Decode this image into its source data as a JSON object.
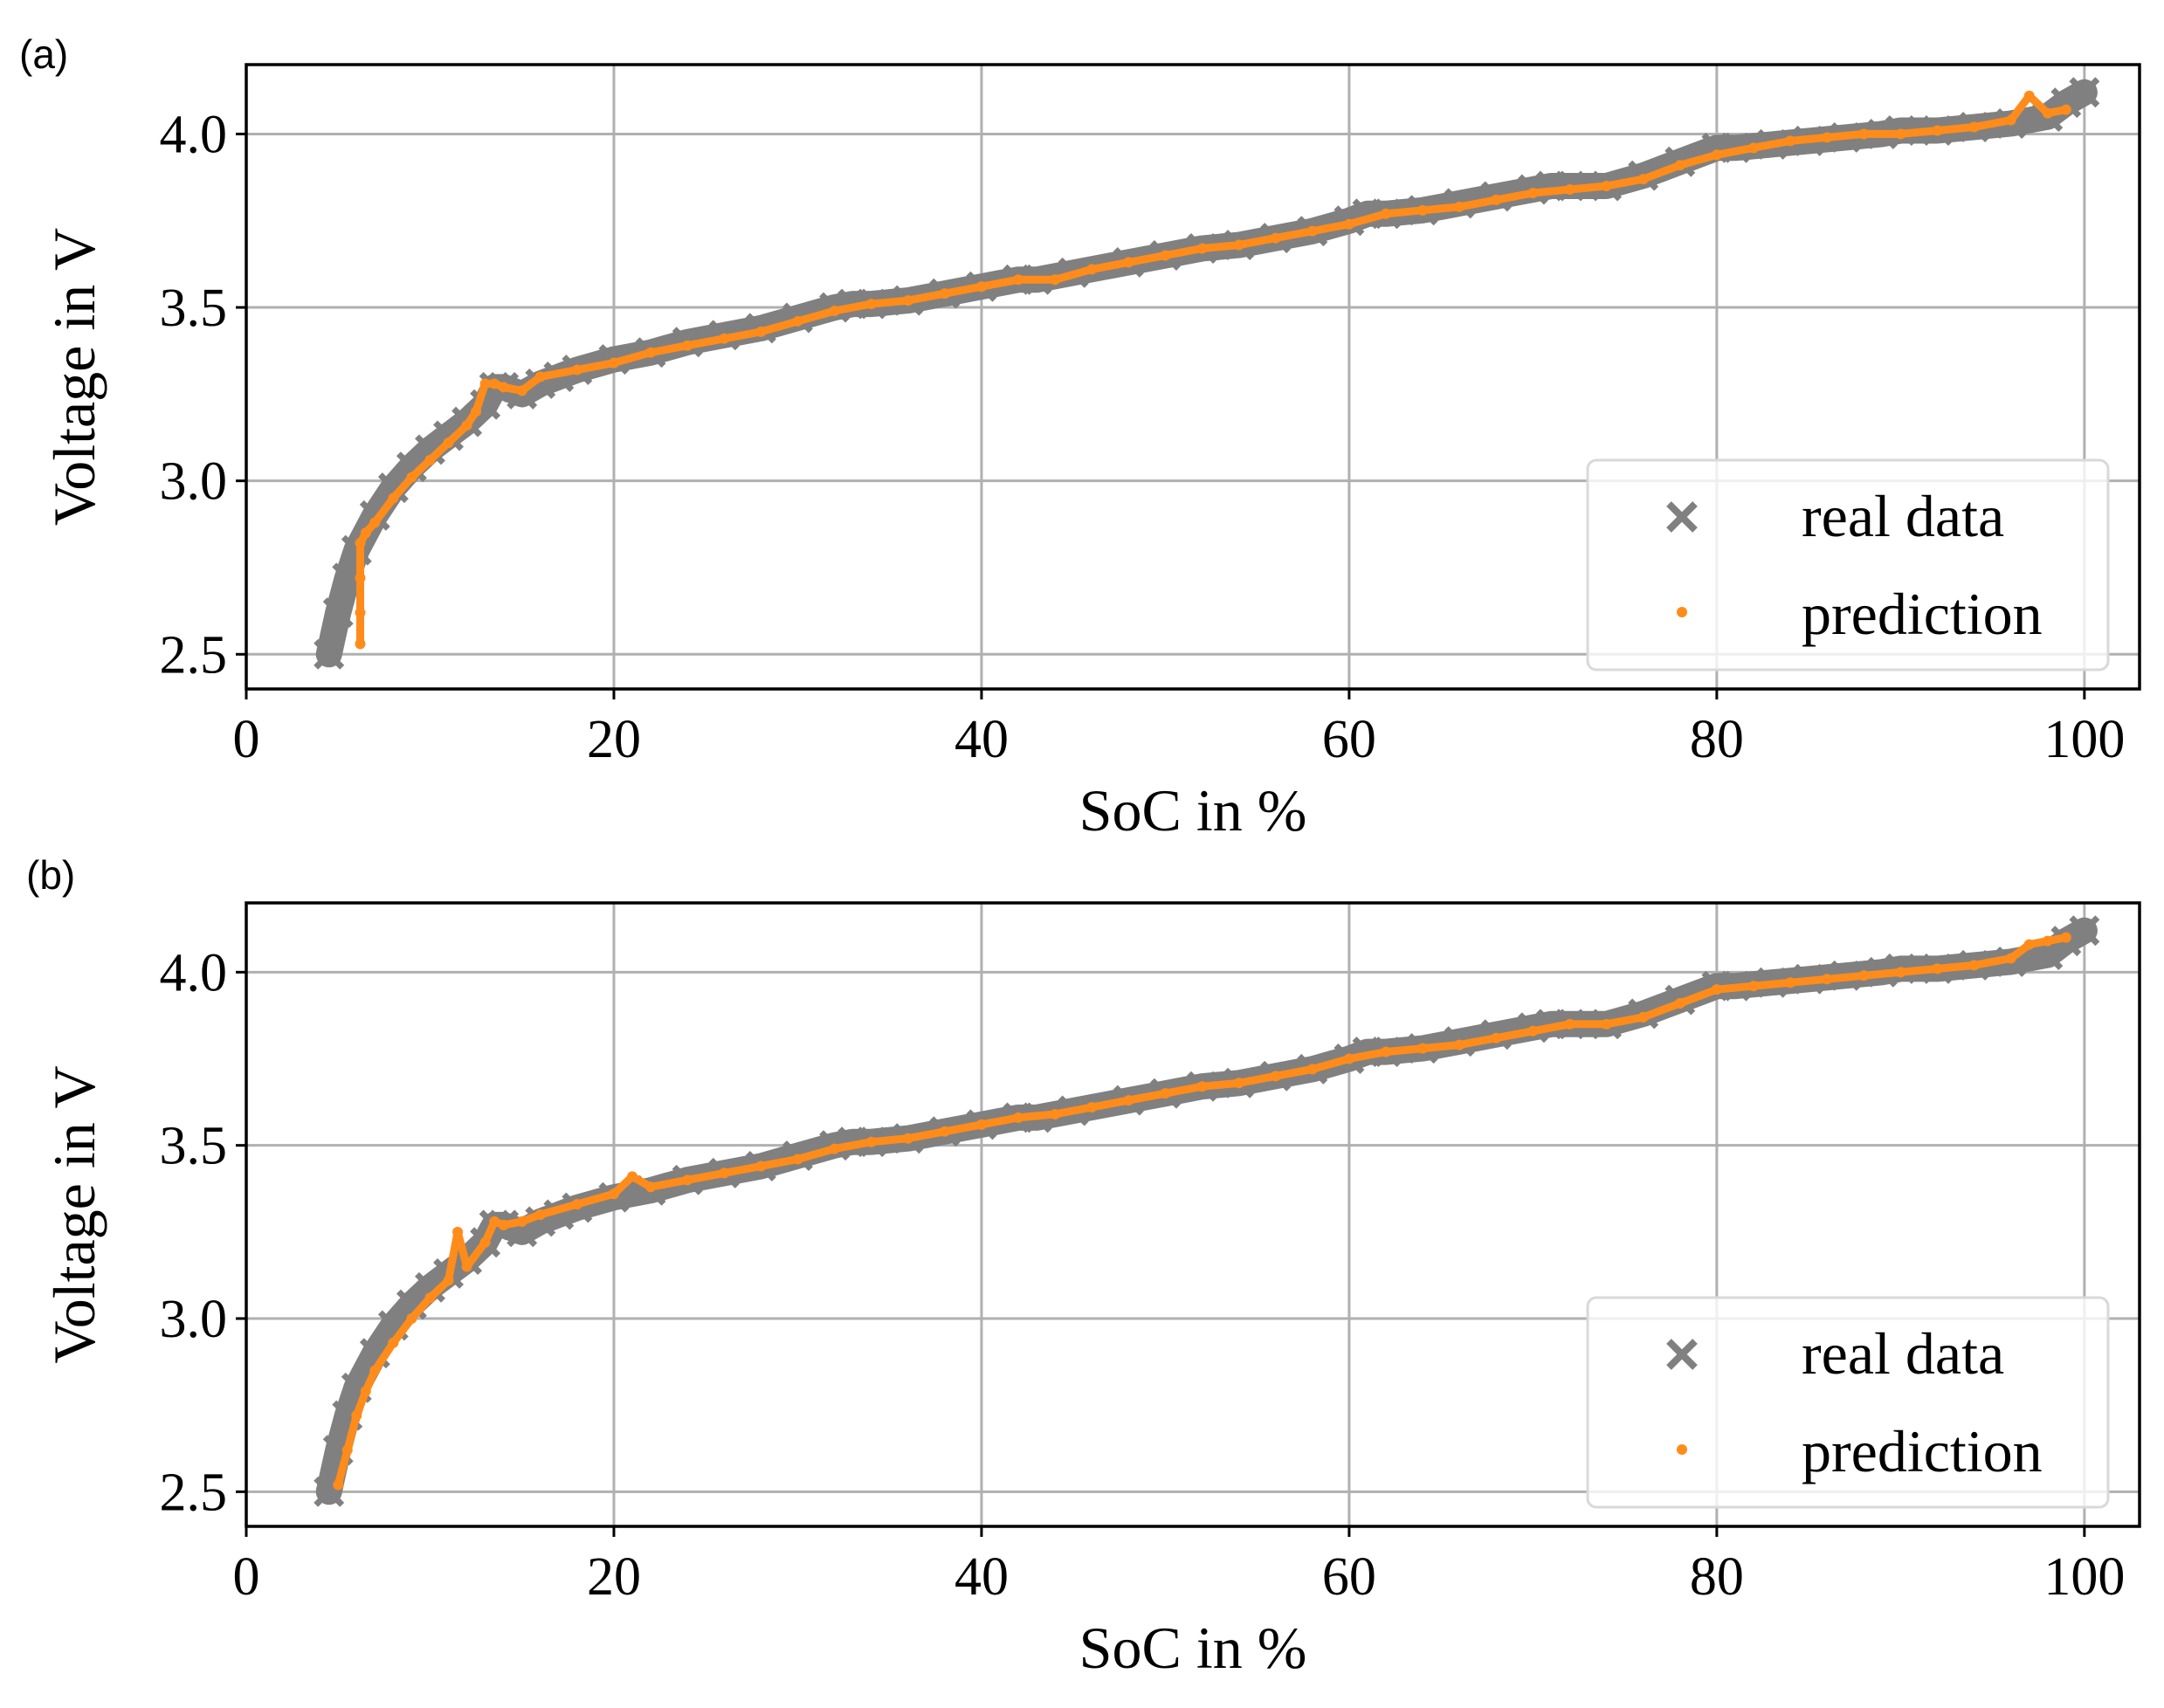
{
  "chart_data": [
    {
      "panel_label": "(a)",
      "type": "scatter",
      "xlabel": "SoC in %",
      "ylabel": "Voltage in V",
      "xlim": [
        0,
        103
      ],
      "ylim": [
        2.4,
        4.2
      ],
      "xticks": [
        0,
        20,
        40,
        60,
        80,
        100
      ],
      "xtick_labels": [
        "0",
        "20",
        "40",
        "60",
        "80",
        "100"
      ],
      "yticks": [
        2.5,
        3.0,
        3.5,
        4.0
      ],
      "ytick_labels": [
        "2.5",
        "3.0",
        "3.5",
        "4.0"
      ],
      "grid": true,
      "legend_position": "lower-right",
      "series": [
        {
          "name": "real data",
          "marker": "x",
          "color": "#808080",
          "x": [
            4.5,
            5.0,
            5.5,
            6,
            7,
            8,
            9,
            10,
            11,
            12,
            13,
            13.5,
            14,
            15,
            16,
            17,
            18,
            20,
            22,
            24,
            26,
            28,
            30,
            32,
            33,
            34,
            36,
            38,
            40,
            42,
            43,
            45,
            48,
            50,
            52,
            54,
            56,
            58,
            60,
            61,
            62,
            64,
            66,
            68,
            70,
            71,
            72,
            74,
            76,
            78,
            80,
            81,
            83,
            85,
            87,
            89,
            90,
            92,
            94,
            96,
            98,
            99,
            100
          ],
          "y": [
            2.5,
            2.62,
            2.72,
            2.8,
            2.9,
            2.98,
            3.04,
            3.09,
            3.13,
            3.17,
            3.22,
            3.27,
            3.27,
            3.25,
            3.28,
            3.3,
            3.32,
            3.35,
            3.37,
            3.4,
            3.42,
            3.44,
            3.47,
            3.5,
            3.51,
            3.51,
            3.52,
            3.54,
            3.56,
            3.58,
            3.58,
            3.6,
            3.63,
            3.65,
            3.67,
            3.68,
            3.7,
            3.72,
            3.75,
            3.77,
            3.77,
            3.78,
            3.8,
            3.82,
            3.84,
            3.85,
            3.85,
            3.85,
            3.88,
            3.92,
            3.96,
            3.96,
            3.97,
            3.98,
            3.99,
            4.0,
            4.01,
            4.01,
            4.02,
            4.03,
            4.05,
            4.09,
            4.12
          ]
        },
        {
          "name": "prediction",
          "marker": "dot",
          "color": "#ff8c1a",
          "x": [
            6.2,
            6.2,
            6.2,
            6.2,
            6.5,
            7,
            8,
            9,
            10,
            11,
            12,
            12.5,
            13,
            13.5,
            14,
            15,
            16,
            18,
            20,
            22,
            24,
            26,
            28,
            30,
            32,
            34,
            36,
            38,
            40,
            42,
            44,
            46,
            48,
            50,
            52,
            54,
            56,
            58,
            60,
            62,
            64,
            66,
            68,
            70,
            72,
            74,
            76,
            78,
            80,
            82,
            84,
            86,
            88,
            90,
            92,
            94,
            96,
            97,
            98,
            99
          ],
          "y": [
            2.53,
            2.62,
            2.72,
            2.82,
            2.85,
            2.88,
            2.95,
            3.01,
            3.06,
            3.11,
            3.16,
            3.2,
            3.28,
            3.28,
            3.27,
            3.26,
            3.3,
            3.32,
            3.34,
            3.37,
            3.39,
            3.41,
            3.43,
            3.46,
            3.49,
            3.51,
            3.52,
            3.54,
            3.56,
            3.58,
            3.58,
            3.61,
            3.63,
            3.65,
            3.67,
            3.68,
            3.7,
            3.72,
            3.74,
            3.77,
            3.78,
            3.79,
            3.81,
            3.83,
            3.84,
            3.85,
            3.87,
            3.91,
            3.94,
            3.96,
            3.98,
            3.99,
            4.0,
            4.0,
            4.01,
            4.02,
            4.04,
            4.11,
            4.06,
            4.07
          ]
        }
      ]
    },
    {
      "panel_label": "(b)",
      "type": "scatter",
      "xlabel": "SoC in %",
      "ylabel": "Voltage in V",
      "xlim": [
        0,
        103
      ],
      "ylim": [
        2.4,
        4.2
      ],
      "xticks": [
        0,
        20,
        40,
        60,
        80,
        100
      ],
      "xtick_labels": [
        "0",
        "20",
        "40",
        "60",
        "80",
        "100"
      ],
      "yticks": [
        2.5,
        3.0,
        3.5,
        4.0
      ],
      "ytick_labels": [
        "2.5",
        "3.0",
        "3.5",
        "4.0"
      ],
      "grid": true,
      "legend_position": "lower-right",
      "series": [
        {
          "name": "real data",
          "marker": "x",
          "color": "#808080",
          "x": [
            4.5,
            5.0,
            5.5,
            6,
            7,
            8,
            9,
            10,
            11,
            12,
            13,
            13.5,
            14,
            15,
            16,
            17,
            18,
            20,
            22,
            24,
            26,
            28,
            30,
            32,
            33,
            34,
            36,
            38,
            40,
            42,
            43,
            45,
            48,
            50,
            52,
            54,
            56,
            58,
            60,
            61,
            62,
            64,
            66,
            68,
            70,
            71,
            72,
            74,
            76,
            78,
            80,
            81,
            83,
            85,
            87,
            89,
            90,
            92,
            94,
            96,
            98,
            99,
            100
          ],
          "y": [
            2.5,
            2.62,
            2.72,
            2.8,
            2.9,
            2.98,
            3.04,
            3.09,
            3.13,
            3.17,
            3.22,
            3.27,
            3.27,
            3.25,
            3.28,
            3.3,
            3.32,
            3.35,
            3.37,
            3.4,
            3.42,
            3.44,
            3.47,
            3.5,
            3.51,
            3.51,
            3.52,
            3.54,
            3.56,
            3.58,
            3.58,
            3.6,
            3.63,
            3.65,
            3.67,
            3.68,
            3.7,
            3.72,
            3.75,
            3.77,
            3.77,
            3.78,
            3.8,
            3.82,
            3.84,
            3.85,
            3.85,
            3.85,
            3.88,
            3.92,
            3.96,
            3.96,
            3.97,
            3.98,
            3.99,
            4.0,
            4.01,
            4.01,
            4.02,
            4.03,
            4.05,
            4.09,
            4.12
          ]
        },
        {
          "name": "prediction",
          "marker": "dot",
          "color": "#ff8c1a",
          "x": [
            5.0,
            5.5,
            6,
            6.5,
            7,
            8,
            9,
            10,
            11,
            11.5,
            12,
            13,
            13.5,
            14,
            15,
            16,
            18,
            20,
            21,
            22,
            24,
            26,
            28,
            30,
            32,
            34,
            36,
            38,
            40,
            42,
            44,
            46,
            48,
            50,
            52,
            54,
            56,
            58,
            60,
            62,
            64,
            66,
            68,
            70,
            72,
            74,
            76,
            78,
            80,
            82,
            84,
            86,
            88,
            90,
            92,
            94,
            96,
            97,
            98,
            99
          ],
          "y": [
            2.52,
            2.62,
            2.72,
            2.79,
            2.85,
            2.93,
            3.0,
            3.06,
            3.11,
            3.25,
            3.15,
            3.22,
            3.28,
            3.27,
            3.28,
            3.3,
            3.33,
            3.36,
            3.41,
            3.38,
            3.4,
            3.42,
            3.44,
            3.46,
            3.49,
            3.51,
            3.52,
            3.54,
            3.56,
            3.58,
            3.59,
            3.61,
            3.63,
            3.65,
            3.67,
            3.68,
            3.7,
            3.72,
            3.75,
            3.77,
            3.78,
            3.79,
            3.81,
            3.83,
            3.85,
            3.85,
            3.87,
            3.91,
            3.95,
            3.96,
            3.97,
            3.98,
            3.99,
            4.0,
            4.01,
            4.02,
            4.04,
            4.08,
            4.09,
            4.1
          ]
        }
      ]
    }
  ]
}
